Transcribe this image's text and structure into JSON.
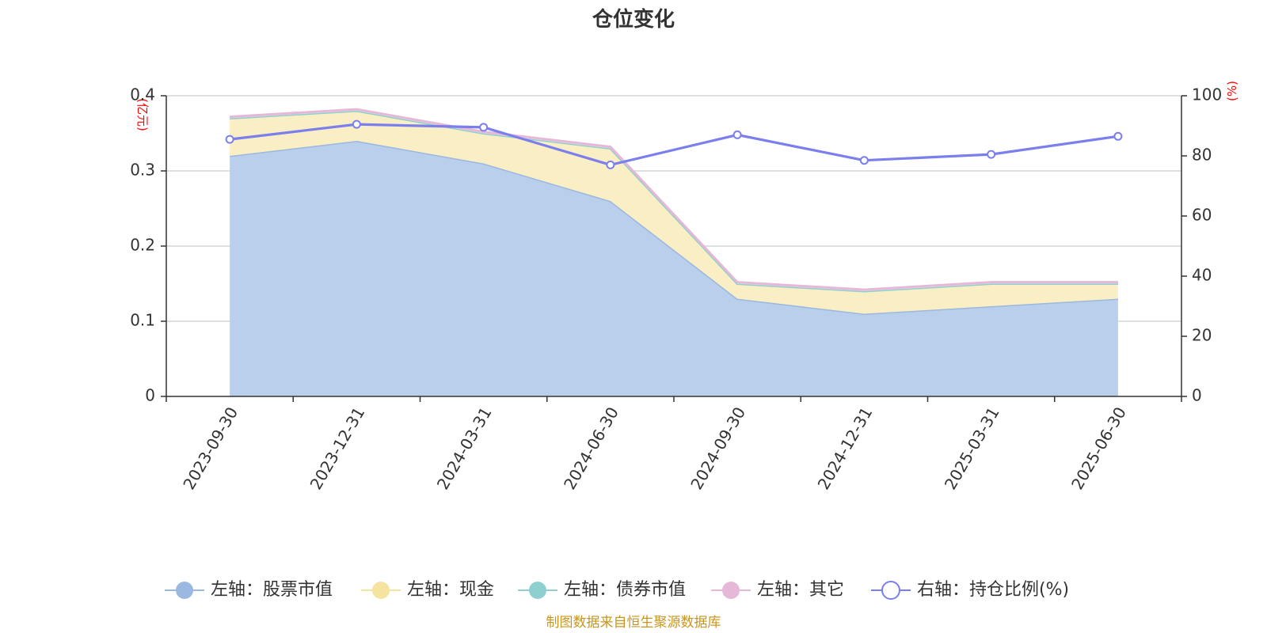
{
  "chart_data": {
    "type": "area",
    "title": "仓位变化",
    "categories": [
      "2023-09-30",
      "2023-12-31",
      "2024-03-31",
      "2024-06-30",
      "2024-09-30",
      "2024-12-31",
      "2025-03-31",
      "2025-06-30"
    ],
    "left_axis": {
      "unit": "(亿元)",
      "ylim": [
        0,
        0.4
      ],
      "ticks": [
        "0",
        "0.1",
        "0.2",
        "0.3",
        "0.4"
      ]
    },
    "right_axis": {
      "unit": "(%)",
      "ylim": [
        0,
        100
      ],
      "ticks": [
        "0",
        "20",
        "40",
        "60",
        "80",
        "100"
      ]
    },
    "series": [
      {
        "name": "股票市值",
        "axis": "left",
        "stack": true,
        "color": "#9bb8e0",
        "fill": "#b9cfeb",
        "values": [
          0.32,
          0.34,
          0.31,
          0.26,
          0.13,
          0.11,
          0.12,
          0.13
        ]
      },
      {
        "name": "现金",
        "axis": "left",
        "stack": true,
        "color": "#f5e3a0",
        "fill": "#faefc4",
        "values": [
          0.05,
          0.04,
          0.04,
          0.07,
          0.02,
          0.03,
          0.03,
          0.02
        ]
      },
      {
        "name": "债券市值",
        "axis": "left",
        "stack": true,
        "color": "#8ecfcf",
        "fill": "#bfe5e5",
        "values": [
          0,
          0,
          0,
          0,
          0,
          0,
          0,
          0
        ]
      },
      {
        "name": "其它",
        "axis": "left",
        "stack": true,
        "color": "#e6b8d8",
        "fill": "#f3dcec",
        "values": [
          0.002,
          0.002,
          0.002,
          0.002,
          0.002,
          0.002,
          0.002,
          0.002
        ]
      },
      {
        "name": "持仓比例(%)",
        "axis": "right",
        "stack": false,
        "color": "#7b7fee",
        "values": [
          85.5,
          90.5,
          89.5,
          77,
          87,
          78.5,
          80.5,
          86.5
        ]
      }
    ],
    "legend": [
      {
        "label": "左轴：股票市值",
        "color": "#9bb8e0",
        "marker": "filled"
      },
      {
        "label": "左轴：现金",
        "color": "#f5e3a0",
        "marker": "filled"
      },
      {
        "label": "左轴：债券市值",
        "color": "#8ecfcf",
        "marker": "filled"
      },
      {
        "label": "左轴：其它",
        "color": "#e6b8d8",
        "marker": "filled"
      },
      {
        "label": "右轴：持仓比例(%)",
        "color": "#7b7fee",
        "marker": "hollow"
      }
    ],
    "legend_position": "bottom",
    "grid": true,
    "source": "制图数据来自恒生聚源数据库"
  }
}
